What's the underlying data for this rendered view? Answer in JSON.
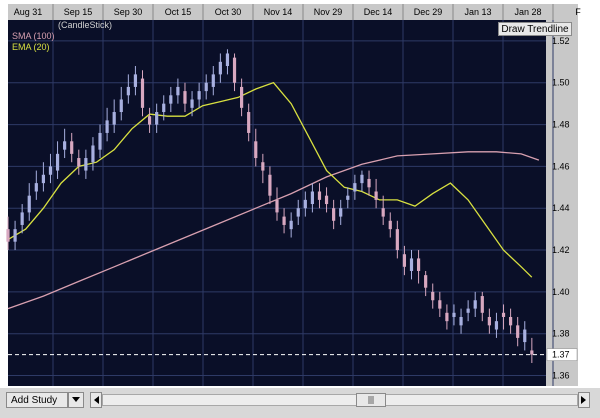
{
  "chart_data": {
    "type": "candlestick",
    "chart_type_label": "(CandleStick)",
    "x_tick_labels": [
      "Aug 31",
      "Sep 15",
      "Sep 30",
      "Oct 15",
      "Oct 30",
      "Nov 14",
      "Nov 29",
      "Dec 14",
      "Dec 29",
      "Jan 13",
      "Jan 28",
      "F"
    ],
    "ylim": [
      1.355,
      1.53
    ],
    "y_ticks": [
      1.52,
      1.5,
      1.48,
      1.46,
      1.44,
      1.42,
      1.4,
      1.38,
      1.36
    ],
    "y_tick_labels": [
      "1.52",
      "1.50",
      "1.48",
      "1.46",
      "1.44",
      "1.42",
      "1.40",
      "1.38",
      "1.36"
    ],
    "last_price": 1.37,
    "last_price_label": "1.37",
    "grid": true,
    "colors": {
      "background": "#0a0f28",
      "grid": "#2e3a66",
      "candle_body": "#a8b0e0",
      "candle_down": "#d8a8c0",
      "sma": "#d8a0b0",
      "ema": "#d8e040",
      "price_line": "#ffffff"
    },
    "series": [
      {
        "name": "SMA (100)",
        "type": "line",
        "color": "#d8a0b0",
        "x": [
          0,
          10,
          20,
          30,
          40,
          50,
          60,
          70,
          80,
          90,
          100,
          110,
          120,
          130,
          138,
          145,
          150
        ],
        "values": [
          1.392,
          1.398,
          1.405,
          1.412,
          1.419,
          1.426,
          1.433,
          1.44,
          1.447,
          1.455,
          1.461,
          1.465,
          1.466,
          1.467,
          1.467,
          1.466,
          1.463
        ]
      },
      {
        "name": "EMA (20)",
        "type": "line",
        "color": "#d8e040",
        "x": [
          0,
          5,
          10,
          15,
          20,
          25,
          30,
          35,
          40,
          45,
          50,
          55,
          60,
          65,
          70,
          75,
          80,
          85,
          90,
          95,
          100,
          105,
          110,
          115,
          120,
          125,
          130,
          135,
          140,
          145,
          148
        ],
        "values": [
          1.425,
          1.43,
          1.44,
          1.452,
          1.46,
          1.462,
          1.468,
          1.478,
          1.485,
          1.484,
          1.484,
          1.489,
          1.491,
          1.493,
          1.497,
          1.5,
          1.49,
          1.474,
          1.458,
          1.45,
          1.448,
          1.444,
          1.444,
          1.441,
          1.447,
          1.452,
          1.444,
          1.432,
          1.42,
          1.412,
          1.407
        ]
      }
    ],
    "candles": {
      "x": [
        0,
        2,
        4,
        6,
        8,
        10,
        12,
        14,
        16,
        18,
        20,
        22,
        24,
        26,
        28,
        30,
        32,
        34,
        36,
        38,
        40,
        42,
        44,
        46,
        48,
        50,
        52,
        54,
        56,
        58,
        60,
        62,
        64,
        66,
        68,
        70,
        72,
        74,
        76,
        78,
        80,
        82,
        84,
        86,
        88,
        90,
        92,
        94,
        96,
        98,
        100,
        102,
        104,
        106,
        108,
        110,
        112,
        114,
        116,
        118,
        120,
        122,
        124,
        126,
        128,
        130,
        132,
        134,
        136,
        138,
        140,
        142,
        144,
        146,
        148
      ],
      "open": [
        1.43,
        1.424,
        1.432,
        1.438,
        1.448,
        1.452,
        1.456,
        1.458,
        1.468,
        1.472,
        1.464,
        1.458,
        1.462,
        1.468,
        1.476,
        1.48,
        1.486,
        1.494,
        1.498,
        1.502,
        1.484,
        1.48,
        1.486,
        1.49,
        1.494,
        1.496,
        1.488,
        1.492,
        1.496,
        1.498,
        1.504,
        1.508,
        1.512,
        1.498,
        1.486,
        1.472,
        1.462,
        1.456,
        1.444,
        1.436,
        1.43,
        1.436,
        1.44,
        1.442,
        1.448,
        1.446,
        1.44,
        1.436,
        1.444,
        1.448,
        1.452,
        1.454,
        1.448,
        1.44,
        1.434,
        1.43,
        1.418,
        1.41,
        1.416,
        1.408,
        1.4,
        1.396,
        1.39,
        1.388,
        1.384,
        1.39,
        1.392,
        1.398,
        1.388,
        1.382,
        1.39,
        1.388,
        1.384,
        1.376,
        1.372
      ],
      "close": [
        1.424,
        1.43,
        1.438,
        1.446,
        1.452,
        1.456,
        1.46,
        1.466,
        1.472,
        1.466,
        1.46,
        1.464,
        1.47,
        1.476,
        1.482,
        1.486,
        1.492,
        1.498,
        1.504,
        1.488,
        1.48,
        1.486,
        1.49,
        1.494,
        1.498,
        1.49,
        1.492,
        1.496,
        1.5,
        1.504,
        1.51,
        1.514,
        1.5,
        1.488,
        1.476,
        1.464,
        1.458,
        1.446,
        1.438,
        1.432,
        1.434,
        1.44,
        1.444,
        1.448,
        1.444,
        1.442,
        1.434,
        1.44,
        1.446,
        1.452,
        1.456,
        1.45,
        1.444,
        1.436,
        1.43,
        1.42,
        1.412,
        1.416,
        1.41,
        1.402,
        1.396,
        1.392,
        1.386,
        1.39,
        1.388,
        1.392,
        1.396,
        1.39,
        1.384,
        1.386,
        1.388,
        1.384,
        1.378,
        1.382,
        1.37
      ],
      "high": [
        1.436,
        1.434,
        1.442,
        1.452,
        1.458,
        1.462,
        1.466,
        1.472,
        1.478,
        1.476,
        1.468,
        1.468,
        1.474,
        1.48,
        1.488,
        1.492,
        1.498,
        1.504,
        1.508,
        1.506,
        1.488,
        1.49,
        1.494,
        1.498,
        1.502,
        1.5,
        1.496,
        1.5,
        1.504,
        1.508,
        1.514,
        1.516,
        1.514,
        1.502,
        1.49,
        1.478,
        1.466,
        1.46,
        1.45,
        1.44,
        1.438,
        1.444,
        1.448,
        1.452,
        1.452,
        1.45,
        1.444,
        1.444,
        1.45,
        1.456,
        1.458,
        1.458,
        1.454,
        1.446,
        1.438,
        1.434,
        1.422,
        1.42,
        1.42,
        1.41,
        1.404,
        1.4,
        1.394,
        1.394,
        1.392,
        1.396,
        1.4,
        1.4,
        1.392,
        1.39,
        1.394,
        1.392,
        1.388,
        1.386,
        1.378
      ],
      "low": [
        1.42,
        1.42,
        1.428,
        1.434,
        1.444,
        1.448,
        1.452,
        1.454,
        1.464,
        1.462,
        1.456,
        1.454,
        1.458,
        1.464,
        1.472,
        1.476,
        1.482,
        1.49,
        1.494,
        1.484,
        1.476,
        1.476,
        1.482,
        1.486,
        1.49,
        1.486,
        1.484,
        1.488,
        1.492,
        1.494,
        1.5,
        1.504,
        1.496,
        1.484,
        1.472,
        1.46,
        1.452,
        1.442,
        1.434,
        1.428,
        1.426,
        1.432,
        1.436,
        1.438,
        1.44,
        1.438,
        1.43,
        1.432,
        1.44,
        1.444,
        1.448,
        1.446,
        1.44,
        1.432,
        1.426,
        1.416,
        1.408,
        1.406,
        1.404,
        1.398,
        1.392,
        1.388,
        1.382,
        1.384,
        1.38,
        1.386,
        1.388,
        1.386,
        1.38,
        1.378,
        1.382,
        1.38,
        1.374,
        1.372,
        1.366
      ]
    }
  },
  "ui": {
    "draw_trendline_label": "Draw Trendline",
    "add_study_label": "Add Study"
  }
}
